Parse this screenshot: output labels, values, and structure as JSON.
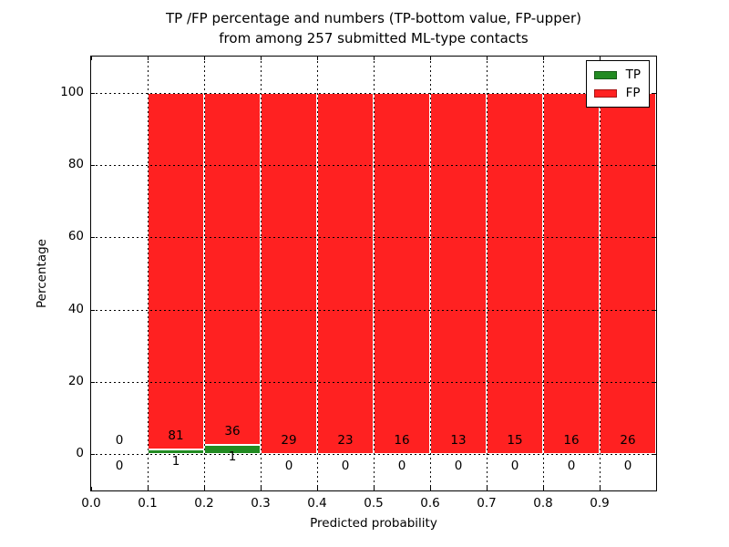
{
  "figure": {
    "title_line1": "TP /FP percentage and numbers (TP-bottom value, FP-upper)",
    "title_line2": "from among 257 submitted ML-type contacts"
  },
  "axes": {
    "xlabel": "Predicted probability",
    "ylabel": "Percentage",
    "xtick_labels": [
      "0.0",
      "0.1",
      "0.2",
      "0.3",
      "0.4",
      "0.5",
      "0.6",
      "0.7",
      "0.8",
      "0.9"
    ],
    "ytick_values": [
      0,
      20,
      40,
      60,
      80,
      100
    ],
    "xlim": [
      0,
      1
    ],
    "ylim": [
      -10,
      110
    ]
  },
  "legend": {
    "items": [
      {
        "label": "TP",
        "color": "#228b22"
      },
      {
        "label": "FP",
        "color": "#ff2121"
      }
    ]
  },
  "chart_data": {
    "type": "bar",
    "stacked": true,
    "normalized": "each 0.1-wide bin scaled to 100%, TP on bottom, FP on top",
    "title": "TP /FP percentage and numbers (TP-bottom value, FP-upper) from among 257 submitted ML-type contacts",
    "xlabel": "Predicted probability",
    "ylabel": "Percentage",
    "xlim": [
      0,
      1
    ],
    "ylim": [
      -10,
      110
    ],
    "grid": "dotted, drawn over bars",
    "legend_position": "upper right",
    "total_contacts": 257,
    "bin_edges": [
      0.0,
      0.1,
      0.2,
      0.3,
      0.4,
      0.5,
      0.6,
      0.7,
      0.8,
      0.9,
      1.0
    ],
    "categories": [
      "0.0-0.1",
      "0.1-0.2",
      "0.2-0.3",
      "0.3-0.4",
      "0.4-0.5",
      "0.5-0.6",
      "0.6-0.7",
      "0.7-0.8",
      "0.8-0.9",
      "0.9-1.0"
    ],
    "series": [
      {
        "name": "TP",
        "color": "#228b22",
        "counts": [
          0,
          1,
          1,
          0,
          0,
          0,
          0,
          0,
          0,
          0
        ]
      },
      {
        "name": "FP",
        "color": "#ff2121",
        "counts": [
          0,
          81,
          36,
          29,
          23,
          16,
          13,
          15,
          16,
          26
        ]
      }
    ]
  }
}
